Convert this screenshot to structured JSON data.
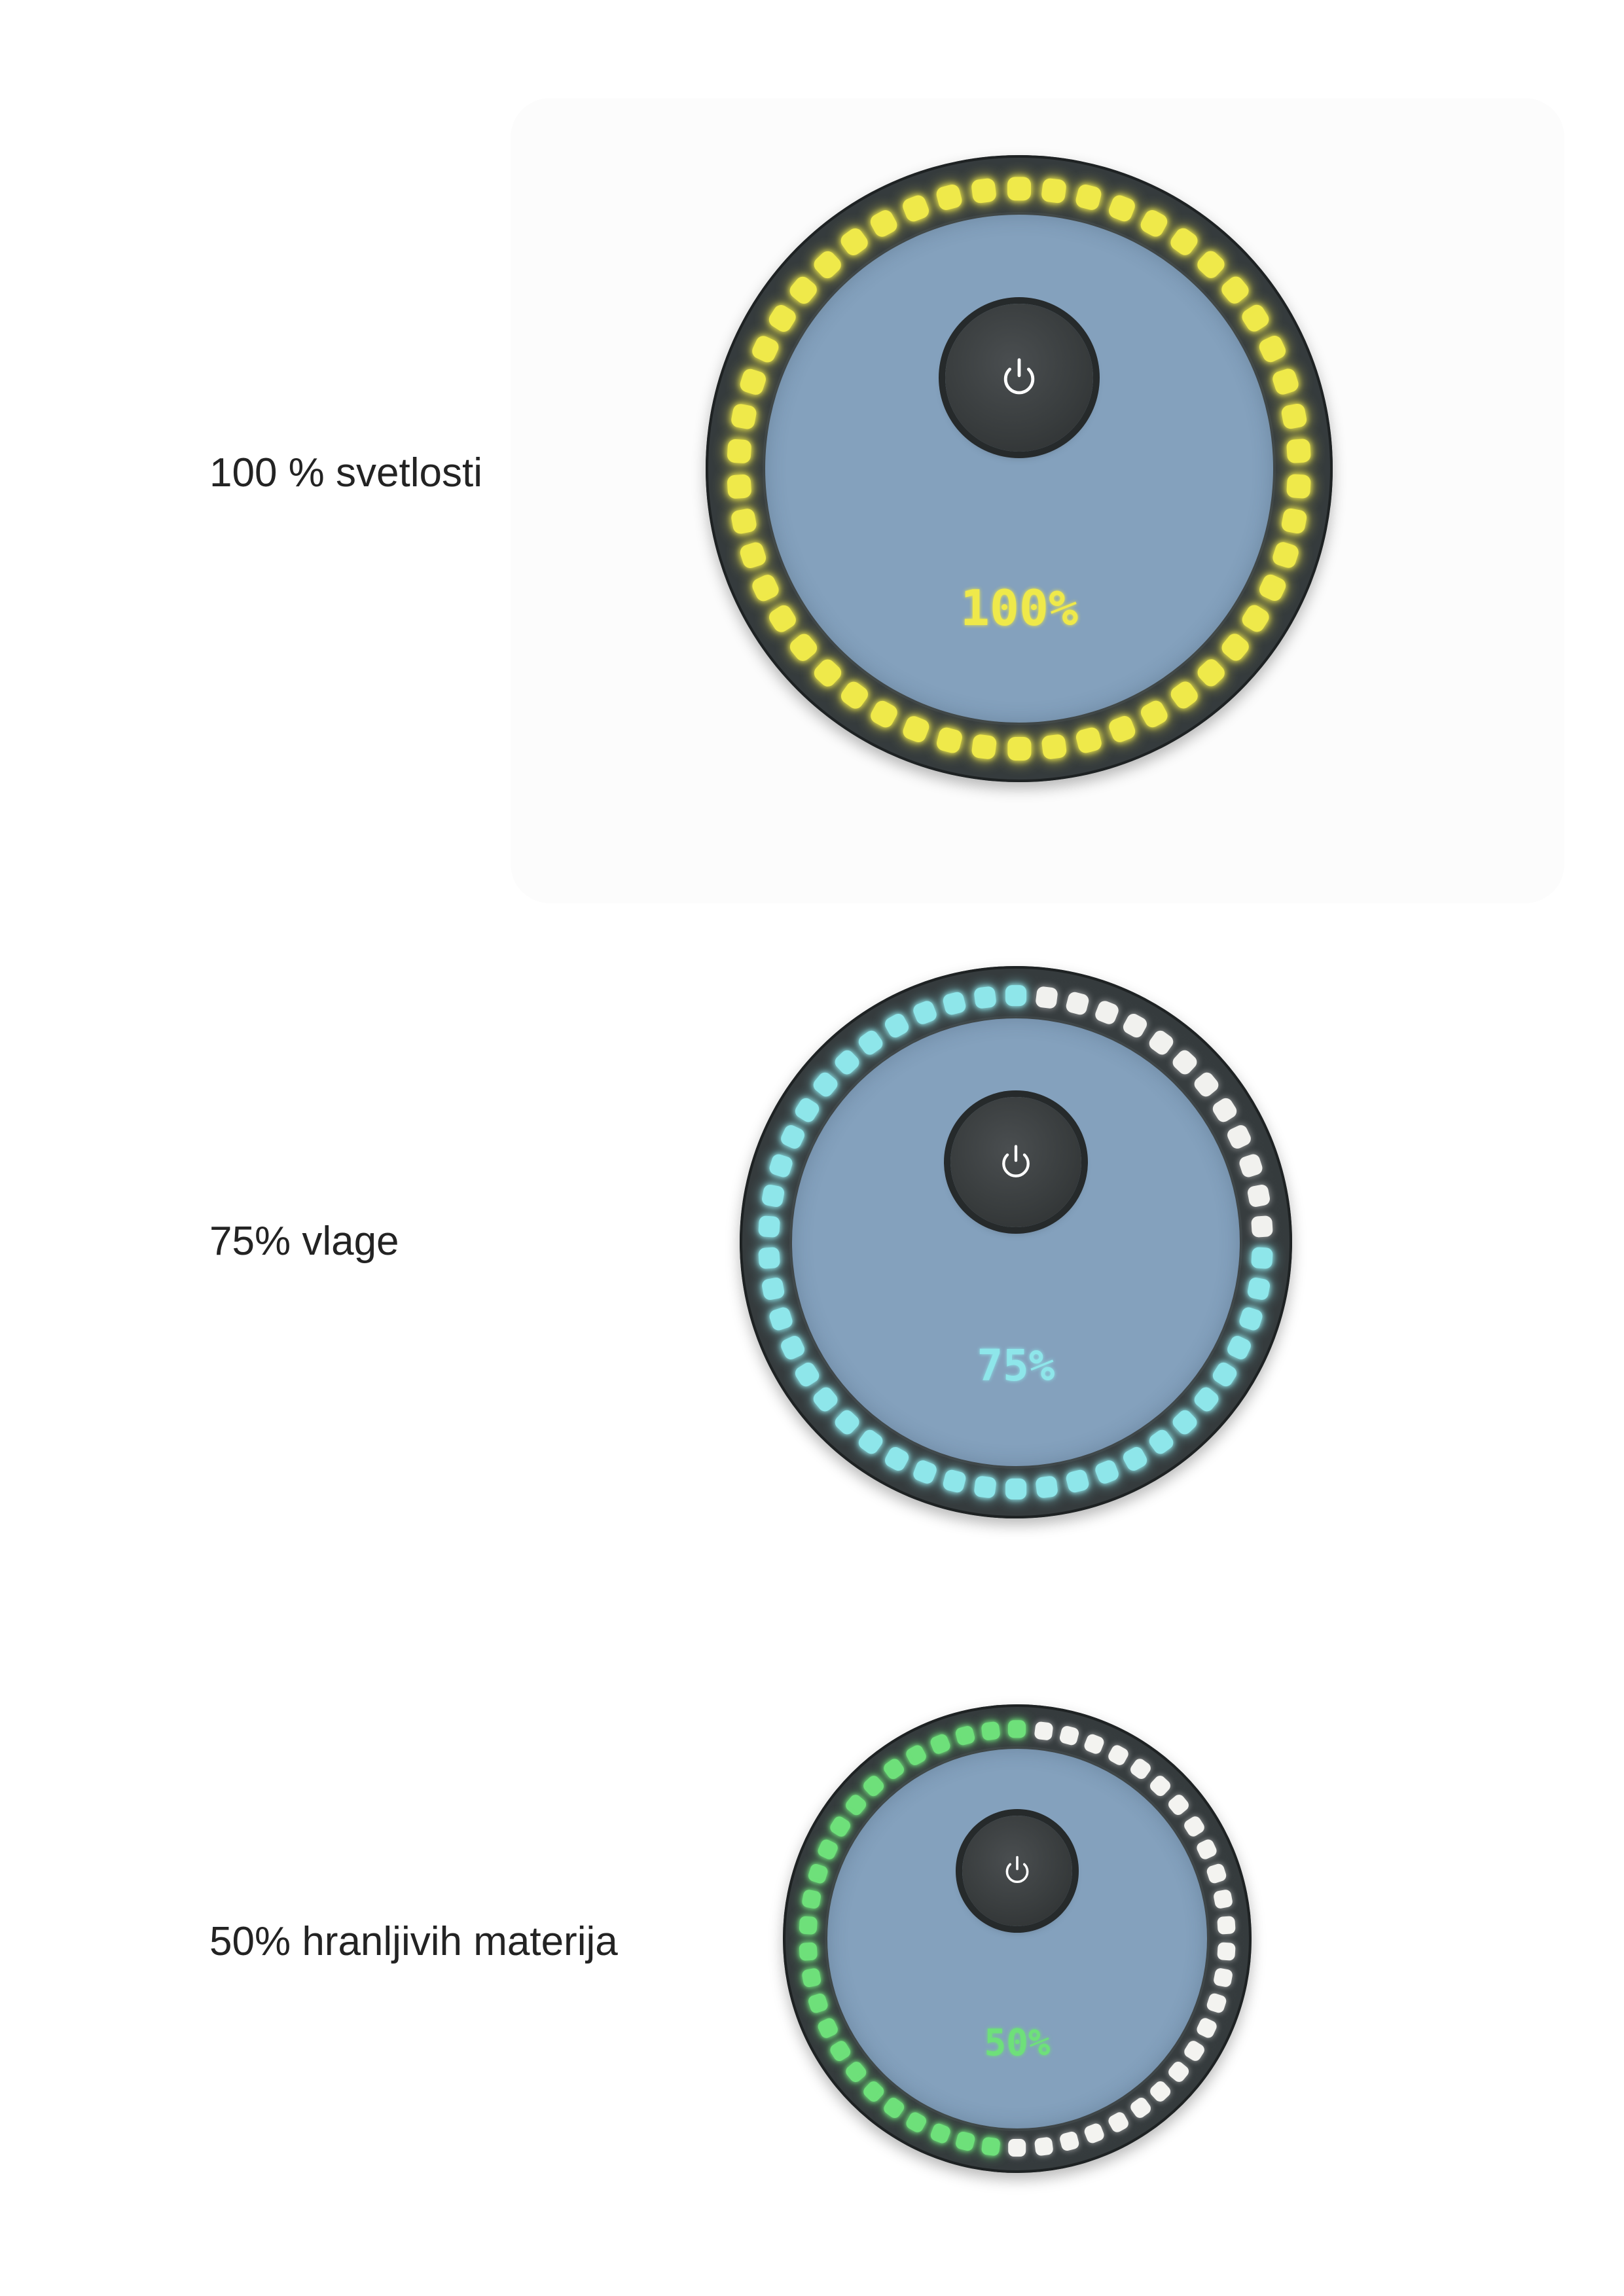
{
  "indicators": [
    {
      "id": "light",
      "label": "100 % svetlosti",
      "readout": "100%",
      "level_percent": 100,
      "lit_color": "#efe94a",
      "unlit_color": "#eeeeea",
      "power_icon": "power-icon"
    },
    {
      "id": "moisture",
      "label": "75% vlage",
      "readout": "75%",
      "level_percent": 75,
      "lit_color": "#8ee6ea",
      "unlit_color": "#f1f1ee",
      "power_icon": "power-icon"
    },
    {
      "id": "nutrients",
      "label": "50% hranljivih materija",
      "readout": "50%",
      "level_percent": 50,
      "lit_color": "#6ee07a",
      "unlit_color": "#f3f3f0",
      "power_icon": "power-icon"
    }
  ],
  "colors": {
    "dial_body": "#353b3d",
    "dial_face": "#84a1bd",
    "button": "#383c3d",
    "power_symbol": "#ffffff",
    "label_text": "#232323"
  }
}
